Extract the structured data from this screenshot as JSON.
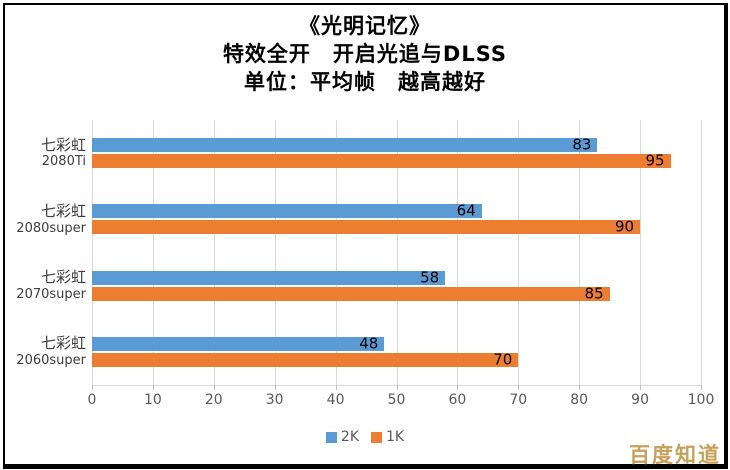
{
  "title": {
    "line1": "《光明记忆》",
    "line2": "特效全开　开启光追与DLSS",
    "line3": "单位：平均帧　越高越好"
  },
  "chart_data": {
    "type": "bar",
    "orientation": "horizontal",
    "categories": [
      {
        "line1": "七彩虹",
        "line2": "2080Ti"
      },
      {
        "line1": "七彩虹",
        "line2": "2080super"
      },
      {
        "line1": "七彩虹",
        "line2": "2070super"
      },
      {
        "line1": "七彩虹",
        "line2": "2060super"
      }
    ],
    "series": [
      {
        "name": "2K",
        "color": "#5B9BD5",
        "values": [
          83,
          64,
          58,
          48
        ]
      },
      {
        "name": "1K",
        "color": "#ED7D31",
        "values": [
          95,
          90,
          85,
          70
        ]
      }
    ],
    "xlim": [
      0,
      100
    ],
    "xticks": [
      0,
      10,
      20,
      30,
      40,
      50,
      60,
      70,
      80,
      90,
      100
    ],
    "grid": "vertical",
    "legend_position": "bottom-center",
    "value_labels": "inside-end",
    "title": "《光明记忆》 特效全开 开启光追与DLSS 单位：平均帧 越高越好"
  },
  "legend": [
    {
      "label": "2K",
      "color": "#5B9BD5"
    },
    {
      "label": "1K",
      "color": "#ED7D31"
    }
  ],
  "watermark": {
    "text": "百度知道",
    "color": "#C7A05A"
  },
  "colors": {
    "grid": "#D9D9D9",
    "axis_text": "#595959",
    "category_text": "#3F3F3F",
    "bar_2k": "#5B9BD5",
    "bar_1k": "#ED7D31",
    "frame": "#000000"
  }
}
